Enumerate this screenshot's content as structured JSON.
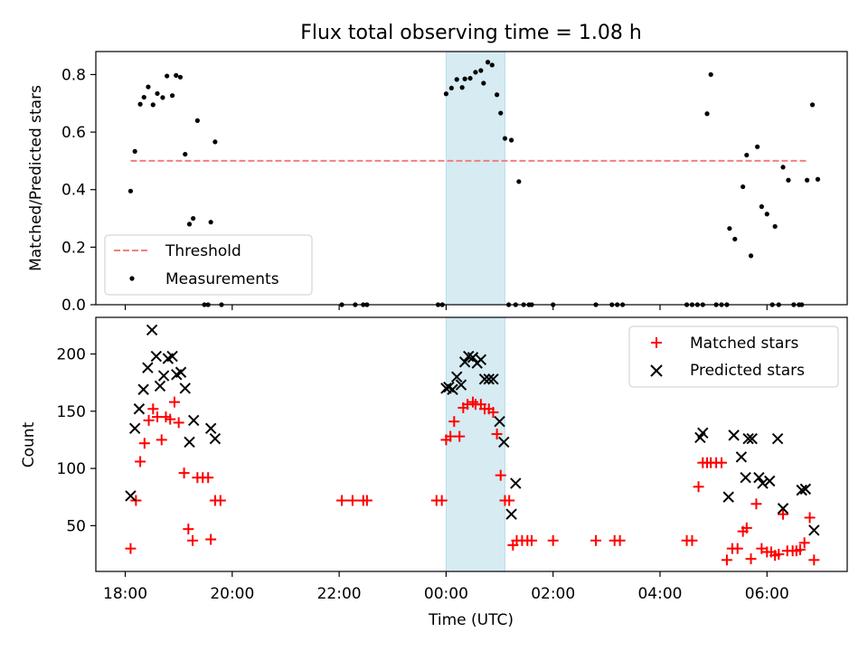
{
  "title": "Flux total observing time = 1.08 h",
  "chart_data": [
    {
      "type": "scatter",
      "panel": "top",
      "ylabel": "Matched/Predicted stars",
      "xlabel": "",
      "xlim": [
        -0.55,
        13.5
      ],
      "ylim": [
        0,
        0.88
      ],
      "yticks": [
        0.0,
        0.2,
        0.4,
        0.6,
        0.8
      ],
      "ytick_labels": [
        "0.0",
        "0.2",
        "0.4",
        "0.6",
        "0.8"
      ],
      "xticks": [
        0,
        2,
        4,
        6,
        8,
        10,
        12
      ],
      "xtick_labels": [
        "",
        "",
        "",
        "",
        "",
        "",
        ""
      ],
      "highlight_span": [
        6.0,
        7.1
      ],
      "threshold": {
        "name": "Threshold",
        "value": 0.5,
        "x_range": [
          0.1,
          12.75
        ],
        "color": "#f08080",
        "style": "dashed"
      },
      "legend": {
        "placement": "lower-left",
        "entries": [
          "Threshold",
          "Measurements"
        ]
      },
      "series": [
        {
          "name": "Measurements",
          "marker": "dot",
          "color": "#000000",
          "points": [
            [
              0.1,
              0.395
            ],
            [
              0.18,
              0.533
            ],
            [
              0.28,
              0.697
            ],
            [
              0.35,
              0.721
            ],
            [
              0.43,
              0.757
            ],
            [
              0.52,
              0.695
            ],
            [
              0.6,
              0.734
            ],
            [
              0.7,
              0.72
            ],
            [
              0.78,
              0.795
            ],
            [
              0.88,
              0.727
            ],
            [
              0.95,
              0.797
            ],
            [
              1.03,
              0.791
            ],
            [
              1.12,
              0.523
            ],
            [
              1.2,
              0.28
            ],
            [
              1.27,
              0.3
            ],
            [
              1.35,
              0.64
            ],
            [
              1.48,
              0
            ],
            [
              1.55,
              0
            ],
            [
              1.6,
              0.287
            ],
            [
              1.68,
              0.566
            ],
            [
              1.8,
              0
            ],
            [
              4.05,
              0
            ],
            [
              4.3,
              0
            ],
            [
              4.45,
              0
            ],
            [
              4.52,
              0
            ],
            [
              5.85,
              0
            ],
            [
              5.93,
              0
            ],
            [
              6.0,
              0.733
            ],
            [
              6.1,
              0.753
            ],
            [
              6.2,
              0.783
            ],
            [
              6.3,
              0.755
            ],
            [
              6.35,
              0.785
            ],
            [
              6.45,
              0.787
            ],
            [
              6.55,
              0.808
            ],
            [
              6.65,
              0.814
            ],
            [
              6.7,
              0.77
            ],
            [
              6.78,
              0.843
            ],
            [
              6.86,
              0.833
            ],
            [
              6.95,
              0.73
            ],
            [
              7.02,
              0.666
            ],
            [
              7.1,
              0.578
            ],
            [
              7.17,
              0
            ],
            [
              7.22,
              0.572
            ],
            [
              7.3,
              0
            ],
            [
              7.36,
              0.428
            ],
            [
              7.45,
              0
            ],
            [
              7.55,
              0
            ],
            [
              7.6,
              0
            ],
            [
              8.0,
              0
            ],
            [
              8.8,
              0
            ],
            [
              9.1,
              0
            ],
            [
              9.2,
              0
            ],
            [
              9.3,
              0
            ],
            [
              10.5,
              0
            ],
            [
              10.6,
              0
            ],
            [
              10.7,
              0
            ],
            [
              10.8,
              0
            ],
            [
              10.88,
              0.664
            ],
            [
              10.95,
              0.8
            ],
            [
              11.05,
              0
            ],
            [
              11.15,
              0
            ],
            [
              11.25,
              0
            ],
            [
              11.3,
              0.265
            ],
            [
              11.4,
              0.228
            ],
            [
              11.55,
              0.41
            ],
            [
              11.62,
              0.52
            ],
            [
              11.7,
              0.17
            ],
            [
              11.82,
              0.549
            ],
            [
              11.9,
              0.341
            ],
            [
              12.0,
              0.315
            ],
            [
              12.1,
              0
            ],
            [
              12.15,
              0.272
            ],
            [
              12.22,
              0
            ],
            [
              12.3,
              0.478
            ],
            [
              12.4,
              0.433
            ],
            [
              12.5,
              0
            ],
            [
              12.6,
              0
            ],
            [
              12.65,
              0
            ],
            [
              12.75,
              0.433
            ],
            [
              12.85,
              0.695
            ],
            [
              12.95,
              0.436
            ]
          ]
        }
      ]
    },
    {
      "type": "scatter",
      "panel": "bottom",
      "ylabel": "Count",
      "xlabel": "Time (UTC)",
      "xlim": [
        -0.55,
        13.5
      ],
      "ylim": [
        10,
        232
      ],
      "yticks": [
        50,
        100,
        150,
        200
      ],
      "ytick_labels": [
        "50",
        "100",
        "150",
        "200"
      ],
      "xticks": [
        0,
        2,
        4,
        6,
        8,
        10,
        12
      ],
      "xtick_labels": [
        "18:00",
        "20:00",
        "22:00",
        "00:00",
        "02:00",
        "04:00",
        "06:00"
      ],
      "highlight_span": [
        6.0,
        7.1
      ],
      "legend": {
        "placement": "top-right",
        "entries": [
          "Matched stars",
          "Predicted stars"
        ]
      },
      "series": [
        {
          "name": "Matched stars",
          "marker": "plus",
          "color": "#ff0000",
          "points": [
            [
              0.1,
              30
            ],
            [
              0.2,
              72
            ],
            [
              0.28,
              106
            ],
            [
              0.36,
              122
            ],
            [
              0.44,
              142
            ],
            [
              0.52,
              152
            ],
            [
              0.6,
              145
            ],
            [
              0.68,
              125
            ],
            [
              0.76,
              145
            ],
            [
              0.84,
              143
            ],
            [
              0.92,
              158
            ],
            [
              1.0,
              140
            ],
            [
              1.1,
              96
            ],
            [
              1.18,
              47
            ],
            [
              1.26,
              37
            ],
            [
              1.35,
              92
            ],
            [
              1.45,
              92
            ],
            [
              1.55,
              92
            ],
            [
              1.6,
              38
            ],
            [
              1.68,
              72
            ],
            [
              1.78,
              72
            ],
            [
              4.05,
              72
            ],
            [
              4.25,
              72
            ],
            [
              4.45,
              72
            ],
            [
              4.52,
              72
            ],
            [
              5.82,
              72
            ],
            [
              5.92,
              72
            ],
            [
              6.0,
              125
            ],
            [
              6.08,
              128
            ],
            [
              6.15,
              141
            ],
            [
              6.25,
              128
            ],
            [
              6.32,
              153
            ],
            [
              6.4,
              156
            ],
            [
              6.5,
              158
            ],
            [
              6.55,
              156
            ],
            [
              6.65,
              156
            ],
            [
              6.72,
              152
            ],
            [
              6.8,
              152
            ],
            [
              6.88,
              149
            ],
            [
              6.95,
              130
            ],
            [
              7.02,
              94
            ],
            [
              7.1,
              72
            ],
            [
              7.18,
              72
            ],
            [
              7.25,
              33
            ],
            [
              7.32,
              37
            ],
            [
              7.42,
              37
            ],
            [
              7.52,
              37
            ],
            [
              7.6,
              37
            ],
            [
              8.0,
              37
            ],
            [
              8.8,
              37
            ],
            [
              9.15,
              37
            ],
            [
              9.25,
              37
            ],
            [
              10.5,
              37
            ],
            [
              10.6,
              37
            ],
            [
              10.72,
              84
            ],
            [
              10.8,
              105
            ],
            [
              10.88,
              105
            ],
            [
              10.95,
              105
            ],
            [
              11.05,
              105
            ],
            [
              11.15,
              105
            ],
            [
              11.25,
              20
            ],
            [
              11.35,
              30
            ],
            [
              11.45,
              30
            ],
            [
              11.55,
              45
            ],
            [
              11.62,
              48
            ],
            [
              11.7,
              21
            ],
            [
              11.8,
              69
            ],
            [
              11.9,
              30
            ],
            [
              12.0,
              27
            ],
            [
              12.08,
              27
            ],
            [
              12.15,
              24
            ],
            [
              12.22,
              25
            ],
            [
              12.3,
              60
            ],
            [
              12.38,
              28
            ],
            [
              12.48,
              28
            ],
            [
              12.55,
              28
            ],
            [
              12.62,
              29
            ],
            [
              12.7,
              35
            ],
            [
              12.8,
              57
            ],
            [
              12.88,
              20
            ]
          ]
        },
        {
          "name": "Predicted stars",
          "marker": "x",
          "color": "#000000",
          "points": [
            [
              0.1,
              76
            ],
            [
              0.18,
              135
            ],
            [
              0.26,
              152
            ],
            [
              0.34,
              169
            ],
            [
              0.42,
              188
            ],
            [
              0.5,
              221
            ],
            [
              0.58,
              198
            ],
            [
              0.65,
              172
            ],
            [
              0.72,
              181
            ],
            [
              0.8,
              196
            ],
            [
              0.88,
              198
            ],
            [
              0.96,
              182
            ],
            [
              1.04,
              184
            ],
            [
              1.12,
              170
            ],
            [
              1.2,
              123
            ],
            [
              1.28,
              142
            ],
            [
              1.6,
              135
            ],
            [
              1.68,
              126
            ],
            [
              6.0,
              170
            ],
            [
              6.05,
              171
            ],
            [
              6.12,
              169
            ],
            [
              6.2,
              180
            ],
            [
              6.28,
              173
            ],
            [
              6.35,
              193
            ],
            [
              6.42,
              198
            ],
            [
              6.5,
              197
            ],
            [
              6.58,
              192
            ],
            [
              6.65,
              195
            ],
            [
              6.72,
              178
            ],
            [
              6.8,
              178
            ],
            [
              6.88,
              178
            ],
            [
              7.0,
              141
            ],
            [
              7.08,
              123
            ],
            [
              7.22,
              60
            ],
            [
              7.3,
              87
            ],
            [
              10.75,
              127
            ],
            [
              10.8,
              131
            ],
            [
              11.28,
              75
            ],
            [
              11.38,
              129
            ],
            [
              11.52,
              110
            ],
            [
              11.6,
              92
            ],
            [
              11.65,
              126
            ],
            [
              11.72,
              126
            ],
            [
              11.85,
              92
            ],
            [
              11.92,
              87
            ],
            [
              12.05,
              89
            ],
            [
              12.2,
              126
            ],
            [
              12.3,
              65
            ],
            [
              12.65,
              81
            ],
            [
              12.72,
              82
            ],
            [
              12.88,
              46
            ]
          ]
        }
      ]
    }
  ]
}
